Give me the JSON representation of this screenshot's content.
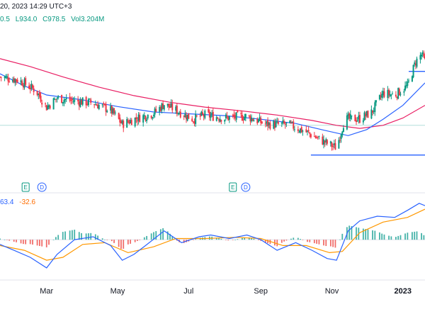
{
  "header": {
    "info_fragment": "20, 2023 14:29 UTC+3",
    "ohlc": {
      "h_fragment": "0.5",
      "l_label": "L934.0",
      "c_label": "C978.5",
      "vol_label": "Vol3.204M"
    },
    "macd_values": {
      "v1": "63.4",
      "v2": "-32.6"
    }
  },
  "colors": {
    "up": "#089981",
    "down": "#f23645",
    "ma_fast": "#2962ff",
    "ma_slow": "#e91e63",
    "macd_line": "#2962ff",
    "signal_line": "#ff9800",
    "hist_up": "#26a69a",
    "hist_down": "#ef5350",
    "axis_text": "#131722",
    "hline": "#2962ff"
  },
  "events": [
    {
      "label": "E",
      "kind": "earnings",
      "date": "2022-02-11"
    },
    {
      "label": "D",
      "kind": "dividend",
      "date": "2022-02-25"
    },
    {
      "label": "E",
      "kind": "earnings",
      "date": "2022-08-08"
    },
    {
      "label": "D",
      "kind": "dividend",
      "date": "2022-08-19"
    }
  ],
  "chart_data": {
    "type": "candlestick",
    "x_range": [
      "2022-01-20",
      "2023-01-20"
    ],
    "x_ticks": [
      {
        "label": "Mar",
        "date": "2022-03-01"
      },
      {
        "label": "May",
        "date": "2022-05-01"
      },
      {
        "label": "Jul",
        "date": "2022-07-01"
      },
      {
        "label": "Sep",
        "date": "2022-09-01"
      },
      {
        "label": "Nov",
        "date": "2022-11-01"
      },
      {
        "label": "2023",
        "date": "2023-01-01"
      }
    ],
    "price_range": [
      860,
      1115
    ],
    "horizontal_lines": [
      {
        "price": 955,
        "from": "2022-01-20",
        "to": "2023-01-20",
        "style": "thin"
      },
      {
        "price": 906,
        "from": "2022-10-14",
        "to": "2023-01-20",
        "style": "solid"
      },
      {
        "price": 1044,
        "from": "2023-01-06",
        "to": "2023-01-20",
        "style": "short"
      }
    ],
    "price_anchors": [
      [
        "2022-01-20",
        1035
      ],
      [
        "2022-02-05",
        1030
      ],
      [
        "2022-02-20",
        1012
      ],
      [
        "2022-03-01",
        985
      ],
      [
        "2022-03-10",
        1000
      ],
      [
        "2022-03-25",
        995
      ],
      [
        "2022-04-10",
        992
      ],
      [
        "2022-04-25",
        980
      ],
      [
        "2022-05-05",
        957
      ],
      [
        "2022-05-15",
        965
      ],
      [
        "2022-06-01",
        975
      ],
      [
        "2022-06-10",
        990
      ],
      [
        "2022-06-25",
        975
      ],
      [
        "2022-07-05",
        965
      ],
      [
        "2022-07-15",
        972
      ],
      [
        "2022-08-01",
        967
      ],
      [
        "2022-08-20",
        970
      ],
      [
        "2022-09-05",
        957
      ],
      [
        "2022-09-25",
        956
      ],
      [
        "2022-10-10",
        944
      ],
      [
        "2022-10-25",
        928
      ],
      [
        "2022-11-05",
        918
      ],
      [
        "2022-11-12",
        965
      ],
      [
        "2022-11-25",
        966
      ],
      [
        "2022-12-05",
        976
      ],
      [
        "2022-12-15",
        1008
      ],
      [
        "2022-12-25",
        1005
      ],
      [
        "2023-01-05",
        1020
      ],
      [
        "2023-01-12",
        1060
      ],
      [
        "2023-01-17",
        1072
      ],
      [
        "2023-01-20",
        1060
      ]
    ],
    "ma_fast": [
      [
        "2022-01-20",
        1040
      ],
      [
        "2022-02-10",
        1020
      ],
      [
        "2022-03-01",
        1005
      ],
      [
        "2022-04-01",
        997
      ],
      [
        "2022-05-01",
        986
      ],
      [
        "2022-06-01",
        977
      ],
      [
        "2022-07-01",
        974
      ],
      [
        "2022-08-01",
        971
      ],
      [
        "2022-09-01",
        965
      ],
      [
        "2022-10-01",
        958
      ],
      [
        "2022-10-25",
        947
      ],
      [
        "2022-11-15",
        938
      ],
      [
        "2022-12-01",
        948
      ],
      [
        "2022-12-15",
        965
      ],
      [
        "2023-01-01",
        988
      ],
      [
        "2023-01-20",
        1025
      ]
    ],
    "ma_slow": [
      [
        "2022-01-20",
        1065
      ],
      [
        "2022-02-15",
        1052
      ],
      [
        "2022-03-15",
        1035
      ],
      [
        "2022-04-15",
        1018
      ],
      [
        "2022-05-15",
        1004
      ],
      [
        "2022-06-15",
        993
      ],
      [
        "2022-07-15",
        985
      ],
      [
        "2022-08-15",
        979
      ],
      [
        "2022-09-15",
        972
      ],
      [
        "2022-10-15",
        963
      ],
      [
        "2022-11-05",
        955
      ],
      [
        "2022-11-25",
        950
      ],
      [
        "2022-12-15",
        955
      ],
      [
        "2023-01-01",
        967
      ],
      [
        "2023-01-20",
        988
      ]
    ],
    "macd_range": [
      -65,
      75
    ],
    "macd_line": [
      [
        "2022-01-20",
        -8
      ],
      [
        "2022-02-01",
        -18
      ],
      [
        "2022-02-15",
        -30
      ],
      [
        "2022-03-01",
        -48
      ],
      [
        "2022-03-10",
        -25
      ],
      [
        "2022-03-25",
        0
      ],
      [
        "2022-04-10",
        5
      ],
      [
        "2022-04-25",
        -10
      ],
      [
        "2022-05-05",
        -35
      ],
      [
        "2022-05-15",
        -25
      ],
      [
        "2022-05-25",
        -10
      ],
      [
        "2022-06-10",
        15
      ],
      [
        "2022-06-25",
        -5
      ],
      [
        "2022-07-10",
        5
      ],
      [
        "2022-07-20",
        8
      ],
      [
        "2022-08-05",
        2
      ],
      [
        "2022-08-20",
        8
      ],
      [
        "2022-09-01",
        0
      ],
      [
        "2022-09-15",
        -18
      ],
      [
        "2022-10-01",
        -5
      ],
      [
        "2022-10-15",
        -18
      ],
      [
        "2022-10-28",
        -32
      ],
      [
        "2022-11-05",
        -35
      ],
      [
        "2022-11-15",
        15
      ],
      [
        "2022-11-25",
        32
      ],
      [
        "2022-12-10",
        40
      ],
      [
        "2022-12-25",
        38
      ],
      [
        "2023-01-05",
        50
      ],
      [
        "2023-01-15",
        62
      ],
      [
        "2023-01-20",
        58
      ]
    ],
    "signal_line": [
      [
        "2022-01-20",
        -10
      ],
      [
        "2022-02-10",
        -18
      ],
      [
        "2022-03-01",
        -35
      ],
      [
        "2022-03-15",
        -30
      ],
      [
        "2022-04-01",
        -8
      ],
      [
        "2022-04-20",
        -5
      ],
      [
        "2022-05-10",
        -22
      ],
      [
        "2022-06-01",
        -12
      ],
      [
        "2022-06-20",
        2
      ],
      [
        "2022-07-15",
        2
      ],
      [
        "2022-08-10",
        4
      ],
      [
        "2022-09-01",
        2
      ],
      [
        "2022-09-20",
        -10
      ],
      [
        "2022-10-10",
        -10
      ],
      [
        "2022-10-30",
        -22
      ],
      [
        "2022-11-10",
        -20
      ],
      [
        "2022-11-25",
        12
      ],
      [
        "2022-12-15",
        30
      ],
      [
        "2023-01-05",
        38
      ],
      [
        "2023-01-20",
        52
      ]
    ]
  }
}
